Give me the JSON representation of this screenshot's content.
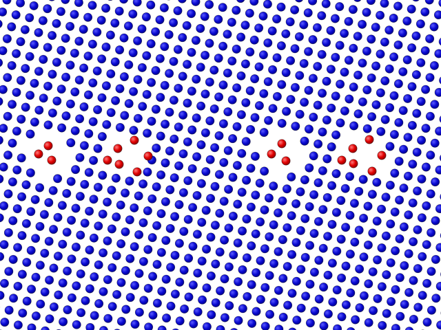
{
  "scene": {
    "background_color": "#ffffff",
    "lattice_atom_color": "#0a0ad2",
    "lattice_atom_highlight": "#4b4bff",
    "defect_atom_color": "#e00000",
    "defect_atom_highlight": "#ff6a6a",
    "outline_color": "#000000",
    "defect_cluster_count": 4,
    "defect_atoms_per_cluster": [
      3,
      6,
      3,
      6
    ]
  }
}
